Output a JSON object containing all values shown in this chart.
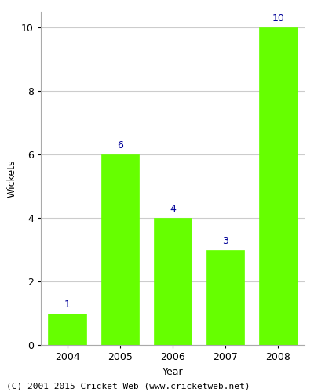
{
  "years": [
    "2004",
    "2005",
    "2006",
    "2007",
    "2008"
  ],
  "values": [
    1,
    6,
    4,
    3,
    10
  ],
  "bar_color": "#66ff00",
  "bar_edgecolor": "#66ff00",
  "xlabel": "Year",
  "ylabel": "Wickets",
  "ylim": [
    0,
    10.5
  ],
  "yticks": [
    0,
    2,
    4,
    6,
    8,
    10
  ],
  "label_color": "#000099",
  "label_fontsize": 9,
  "axis_fontsize": 9,
  "tick_fontsize": 9,
  "footer_text": "(C) 2001-2015 Cricket Web (www.cricketweb.net)",
  "footer_fontsize": 8,
  "grid_color": "#cccccc",
  "background_color": "#ffffff"
}
